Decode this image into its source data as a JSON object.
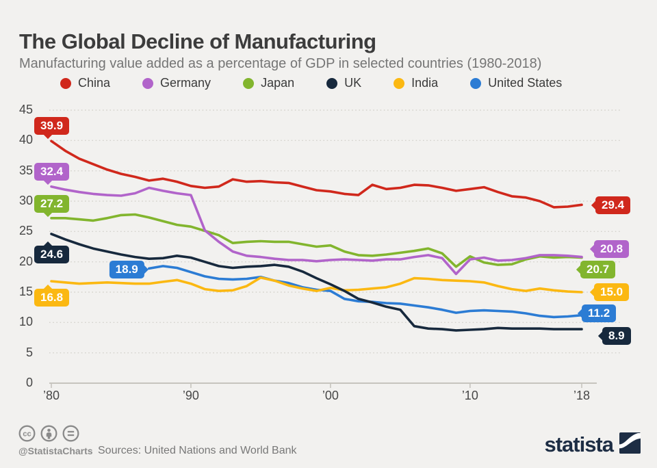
{
  "header": {
    "title": "The Global Decline of Manufacturing",
    "subtitle": "Manufacturing value added as a percentage of GDP in selected countries (1980-2018)"
  },
  "chart_data": {
    "type": "line",
    "years": {
      "start": 1980,
      "end": 2018
    },
    "ylim": [
      0,
      45
    ],
    "grid": "dotted horizontal gridlines, legend top, value badges at line start and end",
    "y_ticks": [
      {
        "value": 45,
        "label": "45"
      },
      {
        "value": 40,
        "label": "40"
      },
      {
        "value": 35,
        "label": "35"
      },
      {
        "value": 30,
        "label": "30"
      },
      {
        "value": 25,
        "label": "25"
      },
      {
        "value": 20,
        "label": "20"
      },
      {
        "value": 15,
        "label": "15"
      },
      {
        "value": 10,
        "label": "10"
      },
      {
        "value": 5,
        "label": "5"
      },
      {
        "value": 0,
        "label": "0"
      }
    ],
    "x_ticks": [
      {
        "year": 1980,
        "label": "’80"
      },
      {
        "year": 1990,
        "label": "’90"
      },
      {
        "year": 2000,
        "label": "’00"
      },
      {
        "year": 2010,
        "label": "’10"
      },
      {
        "year": 2018,
        "label": "’18"
      }
    ],
    "series": [
      {
        "id": "china",
        "name": "China",
        "color": "#d0281c",
        "start_label": "39.9",
        "end_label": "29.4",
        "values": [
          39.9,
          38.3,
          37.0,
          36.1,
          35.2,
          34.5,
          34.0,
          33.4,
          33.7,
          33.2,
          32.5,
          32.2,
          32.4,
          33.6,
          33.2,
          33.3,
          33.1,
          33.0,
          32.4,
          31.8,
          31.6,
          31.2,
          31.0,
          32.7,
          32.0,
          32.2,
          32.7,
          32.6,
          32.2,
          31.7,
          32.0,
          32.3,
          31.5,
          30.8,
          30.6,
          30.0,
          29.0,
          29.1,
          29.4
        ]
      },
      {
        "id": "germany",
        "name": "Germany",
        "color": "#b164ca",
        "start_label": "32.4",
        "end_label": "20.8",
        "values": [
          32.4,
          31.9,
          31.5,
          31.2,
          31.0,
          30.9,
          31.3,
          32.2,
          31.7,
          31.3,
          31.0,
          25.2,
          23.3,
          21.7,
          21.0,
          20.8,
          20.5,
          20.3,
          20.3,
          20.1,
          20.3,
          20.4,
          20.3,
          20.2,
          20.4,
          20.4,
          20.8,
          21.1,
          20.6,
          18.0,
          20.4,
          20.7,
          20.2,
          20.3,
          20.6,
          21.1,
          21.1,
          21.0,
          20.8
        ]
      },
      {
        "id": "japan",
        "name": "Japan",
        "color": "#82b52e",
        "start_label": "27.2",
        "end_label": "20.7",
        "values": [
          27.2,
          27.2,
          27.0,
          26.8,
          27.2,
          27.7,
          27.8,
          27.3,
          26.7,
          26.1,
          25.8,
          25.1,
          24.4,
          23.1,
          23.3,
          23.4,
          23.3,
          23.3,
          22.9,
          22.5,
          22.7,
          21.7,
          21.1,
          21.0,
          21.2,
          21.5,
          21.8,
          22.2,
          21.4,
          19.2,
          20.9,
          19.9,
          19.5,
          19.6,
          20.4,
          20.9,
          20.7,
          20.8,
          20.7
        ]
      },
      {
        "id": "uk",
        "name": "UK",
        "color": "#17293d",
        "start_label": "24.6",
        "end_label": "8.9",
        "values": [
          24.6,
          23.7,
          22.9,
          22.2,
          21.7,
          21.2,
          20.8,
          20.5,
          20.6,
          21.0,
          20.7,
          20.0,
          19.3,
          19.0,
          19.2,
          19.3,
          19.5,
          19.2,
          18.4,
          17.3,
          16.3,
          15.2,
          13.9,
          13.3,
          12.6,
          12.1,
          9.4,
          9.0,
          8.9,
          8.7,
          8.8,
          8.9,
          9.1,
          9.0,
          9.0,
          9.0,
          8.9,
          8.9,
          8.9
        ]
      },
      {
        "id": "india",
        "name": "India",
        "color": "#fbb812",
        "start_label": "16.8",
        "end_label": "15.0",
        "values": [
          16.8,
          16.6,
          16.4,
          16.5,
          16.6,
          16.5,
          16.4,
          16.4,
          16.7,
          17.0,
          16.4,
          15.5,
          15.2,
          15.3,
          16.0,
          17.4,
          16.9,
          16.1,
          15.6,
          15.2,
          15.7,
          15.3,
          15.4,
          15.6,
          15.8,
          16.4,
          17.3,
          17.2,
          17.0,
          16.9,
          16.8,
          16.6,
          16.0,
          15.5,
          15.2,
          15.6,
          15.3,
          15.1,
          15.0
        ]
      },
      {
        "id": "united-states",
        "name": "United States",
        "color": "#2c7cd4",
        "start_label": "18.9",
        "end_label": "11.2",
        "values": [
          null,
          null,
          null,
          null,
          null,
          null,
          null,
          18.9,
          19.3,
          19.0,
          18.3,
          17.6,
          17.2,
          17.1,
          17.2,
          17.5,
          16.9,
          16.5,
          15.8,
          15.4,
          15.2,
          13.9,
          13.5,
          13.4,
          13.2,
          13.1,
          12.8,
          12.5,
          12.1,
          11.6,
          11.9,
          12.0,
          11.9,
          11.8,
          11.5,
          11.1,
          10.9,
          11.0,
          11.2
        ]
      }
    ]
  },
  "footer": {
    "handle": "@StatistaCharts",
    "sources": "Sources: United Nations and World Bank",
    "logo_text": "statista",
    "cc_icons": [
      "cc-icon",
      "attribution-icon",
      "equals-icon"
    ]
  },
  "colors": {
    "background": "#f2f1ef",
    "gridline": "#d4d2cc",
    "axis": "#c6c4be",
    "title": "#3c3c3c",
    "subtitle": "#757575",
    "logo_navy": "#1d2d44"
  }
}
